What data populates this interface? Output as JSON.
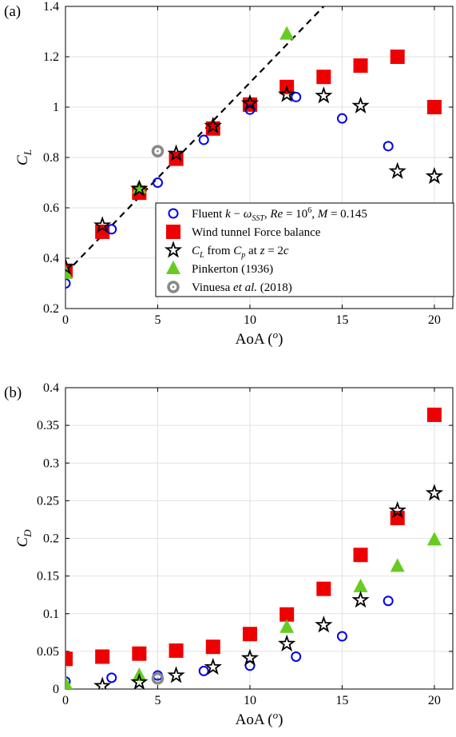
{
  "chart_data": [
    {
      "type": "scatter",
      "panel_label": "(a)",
      "xlabel": "AoA (",
      "xlabel_sup": "o",
      "xlabel_close": ")",
      "ylabel": "C",
      "ylabel_sub": "L",
      "xlim": [
        0,
        21
      ],
      "ylim": [
        0.2,
        1.4
      ],
      "xticks": [
        "0",
        "5",
        "10",
        "15",
        "20"
      ],
      "yticks": [
        "0.2",
        "0.4",
        "0.6",
        "0.8",
        "1",
        "1.2",
        "1.4"
      ],
      "grid": true,
      "legend_position": "lower-right",
      "series": [
        {
          "key": "fluent",
          "marker": "circle-open",
          "color": "#0000ee",
          "x": [
            0,
            2.5,
            5,
            7.5,
            10,
            12.5,
            15,
            17.5
          ],
          "y": [
            0.3,
            0.515,
            0.7,
            0.87,
            0.99,
            1.04,
            0.955,
            0.845
          ]
        },
        {
          "key": "tunnel",
          "marker": "square",
          "color": "#ee0000",
          "x": [
            0,
            2,
            4,
            6,
            8,
            10,
            12,
            14,
            16,
            18,
            20
          ],
          "y": [
            0.35,
            0.505,
            0.66,
            0.795,
            0.915,
            1.01,
            1.08,
            1.12,
            1.165,
            1.2,
            1.0
          ]
        },
        {
          "key": "cp",
          "marker": "star",
          "color": "#000000",
          "x": [
            0,
            2,
            4,
            6,
            8,
            10,
            12,
            14,
            16,
            18,
            20
          ],
          "y": [
            0.365,
            0.53,
            0.675,
            0.815,
            0.925,
            1.015,
            1.05,
            1.045,
            1.005,
            0.745,
            0.725
          ]
        },
        {
          "key": "pinkerton",
          "marker": "triangle",
          "color": "#66cc22",
          "x": [
            0,
            4,
            12
          ],
          "y": [
            0.34,
            0.68,
            1.29
          ]
        },
        {
          "key": "vinuesa",
          "marker": "circle-gray",
          "color": "#888888",
          "x": [
            5
          ],
          "y": [
            0.825
          ]
        }
      ],
      "reference_line": {
        "style": "dashed",
        "color": "#000000",
        "x": [
          0,
          14
        ],
        "y": [
          0.34,
          1.4
        ]
      },
      "legend": [
        {
          "key": "fluent",
          "text": "Fluent k − ω",
          "sub": "SST",
          "text2": ", Re = 10",
          "sup": "6",
          "text3": ", M = 0.145"
        },
        {
          "key": "tunnel",
          "text": "Wind tunnel Force balance"
        },
        {
          "key": "cp",
          "text": "C",
          "sub": "L",
          "text2": " from C",
          "sub2": "p",
          "text3": " at z = 2c"
        },
        {
          "key": "pinkerton",
          "text": "Pinkerton (1936)"
        },
        {
          "key": "vinuesa",
          "text": "Vinuesa ",
          "italic": "et al.",
          "text2": " (2018)"
        }
      ]
    },
    {
      "type": "scatter",
      "panel_label": "(b)",
      "xlabel": "AoA (",
      "xlabel_sup": "o",
      "xlabel_close": ")",
      "ylabel": "C",
      "ylabel_sub": "D",
      "xlim": [
        0,
        21
      ],
      "ylim": [
        0,
        0.4
      ],
      "xticks": [
        "0",
        "5",
        "10",
        "15",
        "20"
      ],
      "yticks": [
        "0",
        "0.05",
        "0.1",
        "0.15",
        "0.2",
        "0.25",
        "0.3",
        "0.35",
        "0.4"
      ],
      "grid": true,
      "series": [
        {
          "key": "fluent",
          "marker": "circle-open",
          "color": "#0000ee",
          "x": [
            0,
            2.5,
            5,
            7.5,
            10,
            12.5,
            15,
            17.5
          ],
          "y": [
            0.01,
            0.015,
            0.018,
            0.024,
            0.031,
            0.043,
            0.07,
            0.117
          ]
        },
        {
          "key": "tunnel",
          "marker": "square",
          "color": "#ee0000",
          "x": [
            0,
            2,
            4,
            6,
            8,
            10,
            12,
            14,
            16,
            18,
            20
          ],
          "y": [
            0.04,
            0.043,
            0.047,
            0.051,
            0.056,
            0.073,
            0.099,
            0.133,
            0.178,
            0.227,
            0.364
          ]
        },
        {
          "key": "cp",
          "marker": "star",
          "color": "#000000",
          "x": [
            2,
            4,
            6,
            8,
            10,
            12,
            14,
            16,
            18,
            20
          ],
          "y": [
            0.004,
            0.009,
            0.018,
            0.029,
            0.041,
            0.06,
            0.085,
            0.118,
            0.237,
            0.26
          ]
        },
        {
          "key": "pinkerton",
          "marker": "triangle",
          "color": "#66cc22",
          "x": [
            0,
            4,
            12,
            16,
            18,
            20
          ],
          "y": [
            0.007,
            0.018,
            0.082,
            0.136,
            0.163,
            0.198
          ]
        },
        {
          "key": "vinuesa",
          "marker": "circle-gray",
          "color": "#888888",
          "x": [
            5
          ],
          "y": [
            0.014
          ]
        }
      ]
    }
  ]
}
